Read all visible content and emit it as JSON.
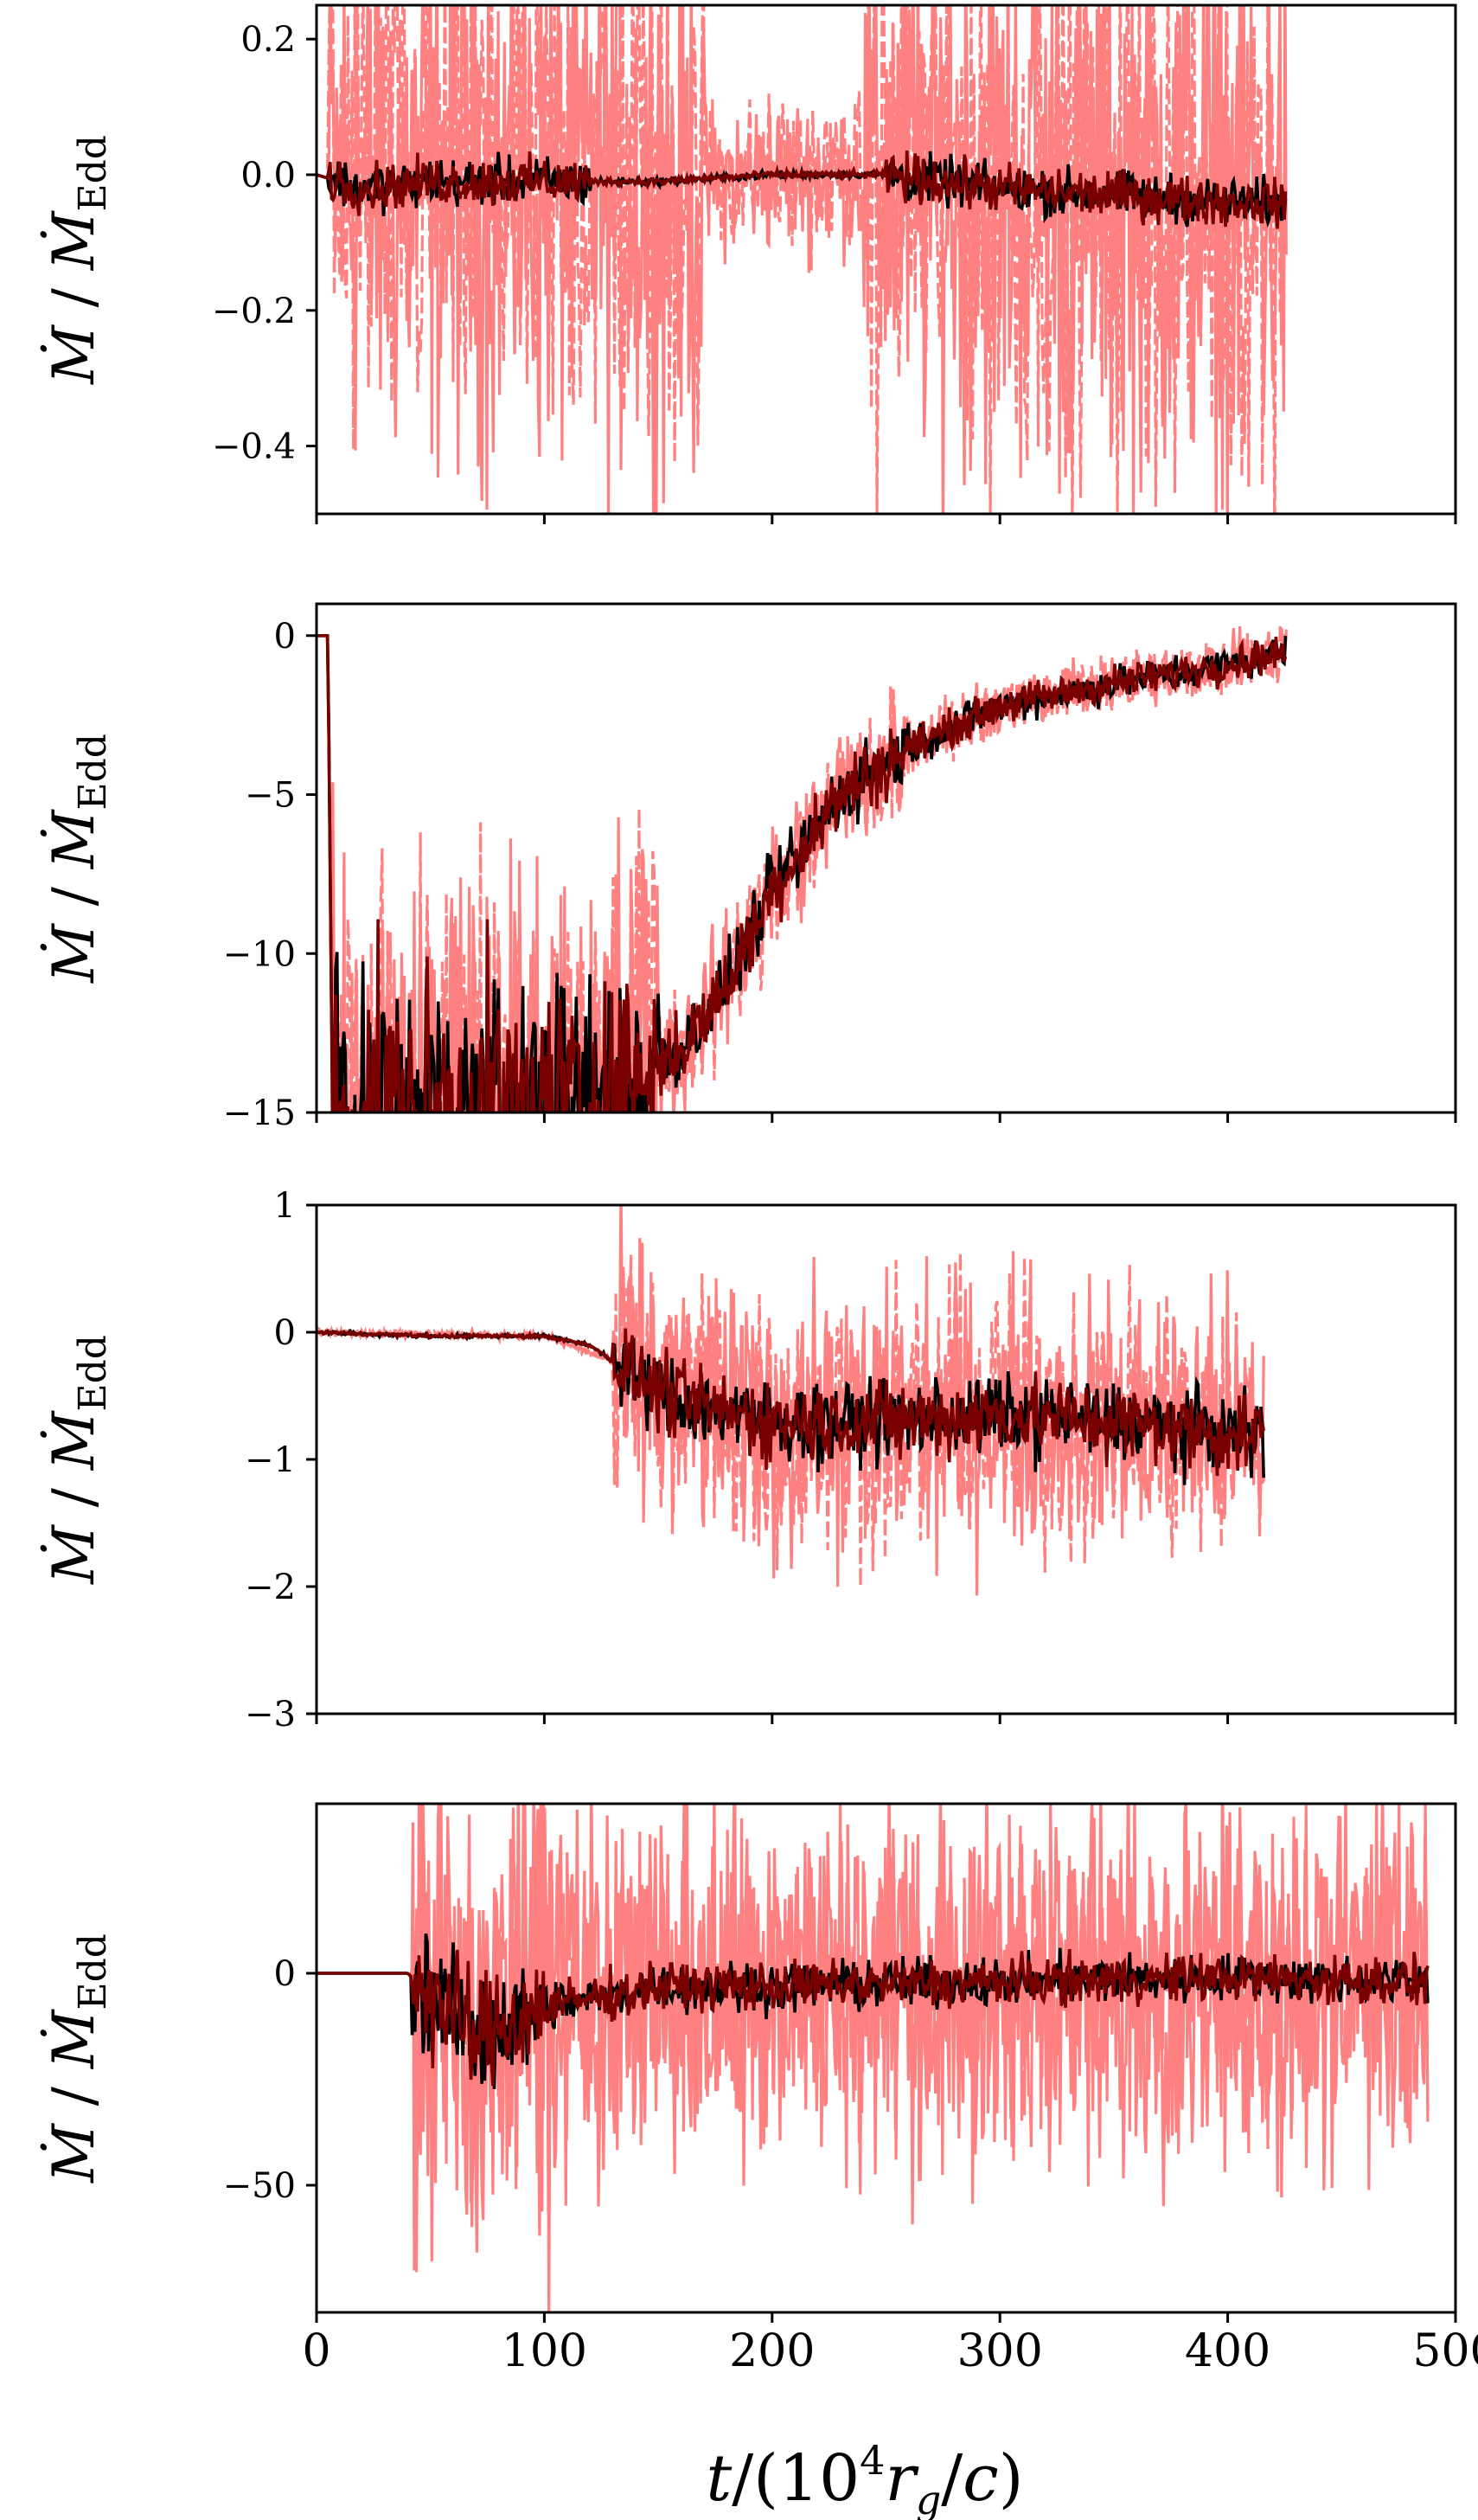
{
  "colors": {
    "background": "#ffffff",
    "axes": "#000000",
    "series_black": "#000000",
    "series_darkred": "#7a0000",
    "series_pink": "#ff8080"
  },
  "chart_data": [
    {
      "type": "line",
      "panel": 1,
      "xlim": [
        0,
        500
      ],
      "ylim": [
        -0.5,
        0.25
      ],
      "ylabel": "Ṁ / Ṁ_Edd",
      "yticks": [
        0.2,
        0.0,
        -0.2,
        -0.4
      ],
      "ytick_labels": [
        "0.2",
        "0.0",
        "−0.2",
        "−0.4"
      ],
      "xticks": [
        0,
        100,
        200,
        300,
        400,
        500
      ],
      "xtick_labels_visible": false,
      "t_end": 426,
      "series": [
        {
          "role": "pink",
          "style": "dashed",
          "envelope": [
            [
              0,
              0.25
            ],
            [
              20,
              0.25
            ],
            [
              60,
              0.16
            ],
            [
              100,
              0.06
            ],
            [
              150,
              0.02
            ],
            [
              200,
              0.12
            ],
            [
              250,
              0.25
            ],
            [
              350,
              0.25
            ],
            [
              426,
              0.25
            ]
          ]
        },
        {
          "role": "black",
          "style": "solid",
          "points": [
            [
              0,
              0.0
            ],
            [
              20,
              -0.02
            ],
            [
              50,
              -0.01
            ],
            [
              100,
              -0.01
            ],
            [
              150,
              -0.01
            ],
            [
              200,
              0.0
            ],
            [
              250,
              0.0
            ],
            [
              300,
              -0.02
            ],
            [
              350,
              -0.03
            ],
            [
              400,
              -0.04
            ],
            [
              426,
              -0.04
            ]
          ]
        },
        {
          "role": "darkred",
          "style": "solid",
          "points": [
            [
              0,
              0.0
            ],
            [
              20,
              -0.02
            ],
            [
              50,
              -0.01
            ],
            [
              100,
              -0.01
            ],
            [
              150,
              -0.01
            ],
            [
              200,
              0.0
            ],
            [
              250,
              0.0
            ],
            [
              300,
              -0.02
            ],
            [
              350,
              -0.03
            ],
            [
              400,
              -0.04
            ],
            [
              426,
              -0.04
            ]
          ]
        }
      ]
    },
    {
      "type": "line",
      "panel": 2,
      "xlim": [
        0,
        500
      ],
      "ylim": [
        -15,
        1
      ],
      "ylabel": "Ṁ / Ṁ_Edd",
      "yticks": [
        0,
        -5,
        -10,
        -15
      ],
      "ytick_labels": [
        "0",
        "−5",
        "−10",
        "−15"
      ],
      "xticks": [
        0,
        100,
        200,
        300,
        400,
        500
      ],
      "xtick_labels_visible": false,
      "t_end": 426,
      "series": [
        {
          "role": "black",
          "style": "solid",
          "points": [
            [
              0,
              0
            ],
            [
              5,
              0
            ],
            [
              7,
              -15
            ],
            [
              120,
              -15
            ],
            [
              160,
              -13
            ],
            [
              180,
              -11
            ],
            [
              200,
              -8
            ],
            [
              230,
              -5
            ],
            [
              260,
              -3.5
            ],
            [
              300,
              -2.2
            ],
            [
              350,
              -1.5
            ],
            [
              400,
              -0.9
            ],
            [
              426,
              -0.5
            ]
          ]
        },
        {
          "role": "darkred",
          "style": "solid",
          "points": [
            [
              0,
              0
            ],
            [
              5,
              0
            ],
            [
              7,
              -15
            ],
            [
              120,
              -15
            ],
            [
              160,
              -13
            ],
            [
              180,
              -11
            ],
            [
              200,
              -8
            ],
            [
              230,
              -5
            ],
            [
              260,
              -3.5
            ],
            [
              300,
              -2.2
            ],
            [
              350,
              -1.5
            ],
            [
              400,
              -0.9
            ],
            [
              426,
              -0.5
            ]
          ]
        },
        {
          "role": "pink",
          "style": "dashed",
          "points": [
            [
              0,
              0
            ],
            [
              5,
              0
            ],
            [
              7,
              -15
            ],
            [
              120,
              -15
            ],
            [
              160,
              -13
            ],
            [
              180,
              -11
            ],
            [
              200,
              -8
            ],
            [
              230,
              -5
            ],
            [
              260,
              -3.5
            ],
            [
              300,
              -2.2
            ],
            [
              350,
              -1.5
            ],
            [
              400,
              -0.9
            ],
            [
              426,
              -0.5
            ]
          ]
        }
      ]
    },
    {
      "type": "line",
      "panel": 3,
      "xlim": [
        0,
        500
      ],
      "ylim": [
        -3,
        1
      ],
      "ylabel": "Ṁ / Ṁ_Edd",
      "yticks": [
        1,
        0,
        -1,
        -2,
        -3
      ],
      "ytick_labels": [
        "1",
        "0",
        "−1",
        "−2",
        "−3"
      ],
      "xticks": [
        0,
        100,
        200,
        300,
        400,
        500
      ],
      "xtick_labels_visible": false,
      "t_end": 416,
      "series": [
        {
          "role": "pink",
          "style": "dashed",
          "envelope": [
            [
              0,
              0.02
            ],
            [
              100,
              0.02
            ],
            [
              130,
              0.0
            ],
            [
              160,
              -0.4
            ],
            [
              200,
              -0.7
            ],
            [
              250,
              -0.75
            ],
            [
              300,
              -0.75
            ],
            [
              350,
              -0.75
            ],
            [
              416,
              -0.8
            ]
          ]
        },
        {
          "role": "black",
          "style": "solid",
          "points": [
            [
              0,
              0.0
            ],
            [
              50,
              -0.03
            ],
            [
              100,
              -0.03
            ],
            [
              120,
              -0.1
            ],
            [
              140,
              -0.35
            ],
            [
              160,
              -0.55
            ],
            [
              200,
              -0.7
            ],
            [
              250,
              -0.7
            ],
            [
              300,
              -0.65
            ],
            [
              350,
              -0.7
            ],
            [
              400,
              -0.8
            ],
            [
              416,
              -0.8
            ]
          ]
        },
        {
          "role": "darkred",
          "style": "solid",
          "points": [
            [
              0,
              0.0
            ],
            [
              50,
              -0.03
            ],
            [
              100,
              -0.03
            ],
            [
              120,
              -0.1
            ],
            [
              140,
              -0.35
            ],
            [
              160,
              -0.55
            ],
            [
              200,
              -0.7
            ],
            [
              250,
              -0.7
            ],
            [
              300,
              -0.65
            ],
            [
              350,
              -0.7
            ],
            [
              400,
              -0.8
            ],
            [
              416,
              -0.8
            ]
          ]
        }
      ]
    },
    {
      "type": "line",
      "panel": 4,
      "xlim": [
        0,
        500
      ],
      "ylim": [
        -80,
        40
      ],
      "ylabel": "Ṁ / Ṁ_Edd",
      "yticks": [
        0,
        -50
      ],
      "ytick_labels": [
        "0",
        "−50"
      ],
      "xticks": [
        0,
        100,
        200,
        300,
        400,
        500
      ],
      "xtick_labels": [
        "0",
        "100",
        "200",
        "300",
        "400",
        "500"
      ],
      "xlabel": "t/(10⁴ r_g/c)",
      "t_end": 488,
      "series": [
        {
          "role": "pink",
          "style": "solid",
          "envelope": [
            [
              0,
              0
            ],
            [
              40,
              0
            ],
            [
              50,
              -5
            ],
            [
              70,
              -10
            ],
            [
              100,
              -8
            ],
            [
              150,
              -5
            ],
            [
              200,
              -3
            ],
            [
              300,
              -3
            ],
            [
              400,
              -2
            ],
            [
              488,
              -3
            ]
          ]
        },
        {
          "role": "black",
          "style": "solid",
          "points": [
            [
              0,
              0
            ],
            [
              40,
              0
            ],
            [
              60,
              -10
            ],
            [
              70,
              -15
            ],
            [
              100,
              -8
            ],
            [
              150,
              -3
            ],
            [
              200,
              -3
            ],
            [
              300,
              -2
            ],
            [
              400,
              -1
            ],
            [
              488,
              -2
            ]
          ]
        },
        {
          "role": "darkred",
          "style": "solid",
          "points": [
            [
              0,
              0
            ],
            [
              40,
              0
            ],
            [
              60,
              -10
            ],
            [
              70,
              -15
            ],
            [
              100,
              -8
            ],
            [
              150,
              -3
            ],
            [
              200,
              -3
            ],
            [
              300,
              -2
            ],
            [
              400,
              -1
            ],
            [
              488,
              -2
            ]
          ]
        }
      ]
    }
  ]
}
